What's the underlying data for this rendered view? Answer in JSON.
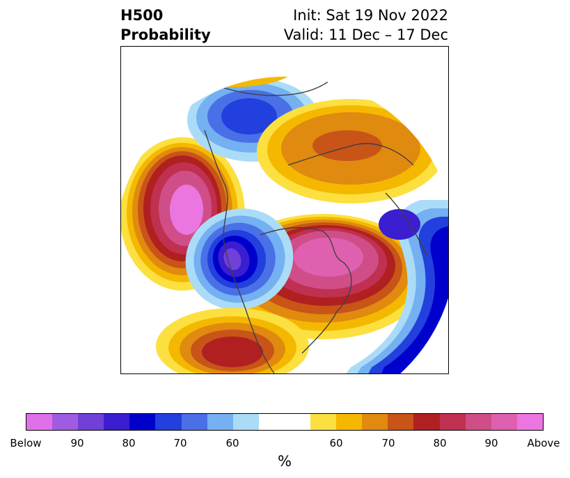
{
  "header": {
    "left_line1": "H500",
    "left_line2": "Probability",
    "right_line1": "Init: Sat 19 Nov 2022",
    "right_line2": "Valid: 11 Dec – 17 Dec"
  },
  "colorbar": {
    "colors": [
      "#e070e8",
      "#a05ce0",
      "#7040d8",
      "#3a1ed0",
      "#0000cc",
      "#2240dd",
      "#4a70e8",
      "#74b0f2",
      "#aadcf8",
      "#ffffff",
      "#ffffff",
      "#fce040",
      "#f5b800",
      "#e08a10",
      "#c85418",
      "#b02020",
      "#c03050",
      "#d04e88",
      "#e060b0",
      "#ec76e0"
    ],
    "tick_labels": [
      "Below",
      "90",
      "80",
      "70",
      "60",
      "60",
      "70",
      "80",
      "90",
      "Above"
    ],
    "unit": "%"
  },
  "map": {
    "projection": "north-polar-stereographic",
    "region": "North America / North Pacific / North Atlantic / Greenland"
  }
}
